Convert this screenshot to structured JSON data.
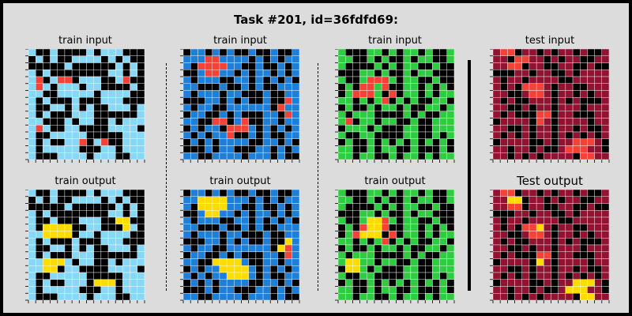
{
  "title": "Task #201, id=36fdfd69:",
  "labels": {
    "train_input": "train input",
    "train_output": "train output",
    "test_input": "test input",
    "test_output": "Test output"
  },
  "palette": {
    "0": "#000000",
    "1": "#1e7fd8",
    "2": "#f44336",
    "3": "#2ecc40",
    "4": "#ffdc00",
    "8": "#87d8f7",
    "9": "#921231"
  },
  "grids": {
    "train_in_1": [
      "8008000080888000",
      "0808008888080800",
      "0000080000008080",
      "8080000000088080",
      "8208220888008200",
      "8280888088000080",
      "8800888880888800",
      "8080008000888000",
      "8008808080088808",
      "8080008880000008",
      "8800080880080888",
      "8280088000088880",
      "8008888800000888",
      "8080088208200888",
      "8088888000880888",
      "8000888808880088"
    ],
    "train_out_1": [
      "8008000080888000",
      "0808008888080800",
      "0000080000008080",
      "8080000000088080",
      "8008000888004400",
      "8044440088000480",
      "8844440880888800",
      "8080008000888000",
      "8008808080088808",
      "8080008880000008",
      "8844480880080888",
      "8844088000088880",
      "8008888800000888",
      "8080088804440888",
      "8088888000880888",
      "8000888808880088"
    ],
    "train_in_2": [
      "0110101001001001",
      "1112211110101011",
      "1022221100100101",
      "0012211010110101",
      "1011100110101010",
      "1100010010100111",
      "1011101100010011",
      "0001101010010021",
      "1011001111110211",
      "0110010100011021",
      "1100220120011011",
      "0101102221010101",
      "1010112001010011",
      "0101011110011010",
      "0001011000110101",
      "1100111101110100"
    ],
    "train_out_2": [
      "0110101001001001",
      "1144441110101011",
      "1044441100100101",
      "0014411010110101",
      "1011100110101010",
      "1100010010100111",
      "1011101100010011",
      "0001101010010041",
      "1011001111110421",
      "0110010100011021",
      "1100444410011011",
      "0101144441010101",
      "1010114441010011",
      "0101011110011010",
      "0001011000110101",
      "1100111101110100"
    ],
    "train_in_3": [
      "3000330303303003",
      "3300303003033003",
      "3000030303300300",
      "0003303003033000",
      "3003222303300300",
      "0302232003303030",
      "0322230203303033",
      "3303032030300330",
      "0300303303003303",
      "3033300003030033",
      "3203303300300333",
      "0333030003300333",
      "3003300003300303",
      "0300303030303030",
      "3300303300300030",
      "3303300303303033"
    ],
    "train_out_3": [
      "3000330303303003",
      "3300303003033003",
      "3000030303300300",
      "0003303003033000",
      "3003442303300300",
      "0302442003303030",
      "0324440203303033",
      "3303032030300330",
      "0300303303003303",
      "3033300003030033",
      "3443303300300333",
      "0443030003300333",
      "3003300003300303",
      "0300303030303030",
      "3300303300300030",
      "3303300303303033"
    ],
    "test_in": [
      "9220990909909009",
      "9902299090990099",
      "9922099009900900",
      "0009909900909999",
      "9099099990099999",
      "9090222909900999",
      "9900922909909099",
      "9090099909090009",
      "9900909909990999",
      "9090002209900099",
      "0999902909999099",
      "9900909909909009",
      "9090909909090909",
      "0999900909922290",
      "9909909009222990",
      "9909090999902299"
    ],
    "test_out": [
      "9220990909909009",
      "9944099090990099",
      "9922099009900900",
      "0009909900909999",
      "9099099990099999",
      "9090224909900999",
      "9900922909909099",
      "9090099909090009",
      "9900909909990999",
      "9090002209900099",
      "0999904909999099",
      "9900909909909009",
      "9090909909090909",
      "0999900909944490",
      "9909909009444990",
      "9909090999904499"
    ]
  }
}
